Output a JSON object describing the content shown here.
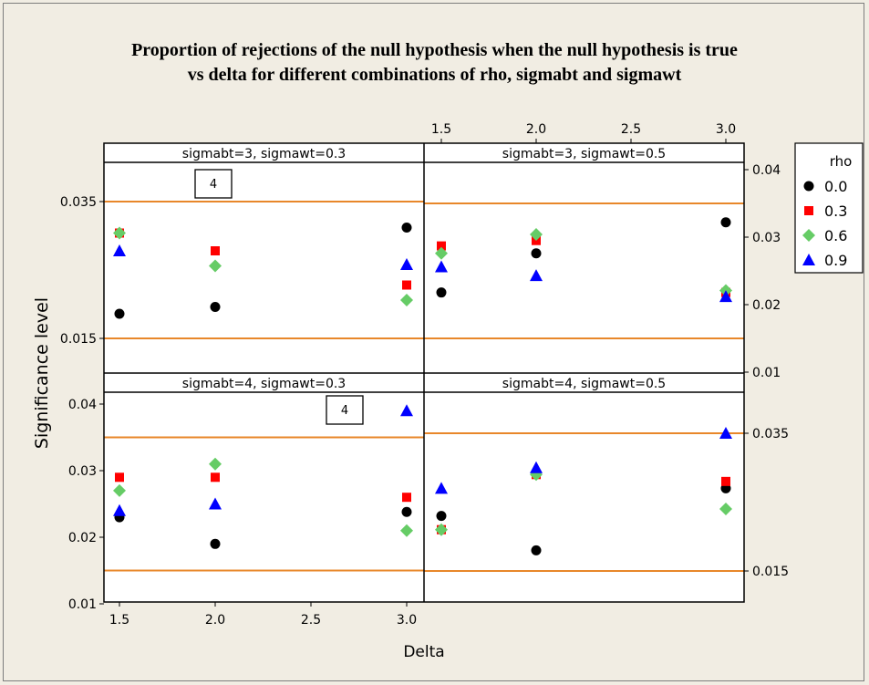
{
  "title": {
    "line1": "Proportion of rejections of the null hypothesis when the null hypothesis is true",
    "line2": "vs delta for different combinations of rho, sigmabt and sigmawt"
  },
  "chart_data": {
    "type": "scatter",
    "xlabel": "Delta",
    "ylabel": "Significance level",
    "x": [
      1.5,
      2.0,
      3.0
    ],
    "x_ticks": [
      "1.5",
      "2.0",
      "2.5",
      "3.0"
    ],
    "x_tick_values": [
      1.5,
      2.0,
      2.5,
      3.0
    ],
    "legend": {
      "title": "rho",
      "placement": "right",
      "entries": [
        {
          "label": "0.0",
          "color": "#000000",
          "shape": "circle"
        },
        {
          "label": "0.3",
          "color": "#ff0000",
          "shape": "square"
        },
        {
          "label": "0.6",
          "color": "#66cc66",
          "shape": "diamond"
        },
        {
          "label": "0.9",
          "color": "#0000ff",
          "shape": "triangle"
        }
      ]
    },
    "reference_lines": [
      0.015,
      0.035
    ],
    "reference_line_color": "#e8872a",
    "panels": [
      {
        "label": "sigmabt=3, sigmawt=0.3",
        "ylim": [
          0.01,
          0.041
        ],
        "yticks": [
          "0.015",
          "0.035"
        ],
        "ytick_values": [
          0.015,
          0.035
        ],
        "annotation": "4",
        "series": [
          {
            "name": "0.0",
            "values": [
              0.0186,
              0.0196,
              0.0312
            ]
          },
          {
            "name": "0.3",
            "values": [
              0.0304,
              0.0278,
              0.0228
            ]
          },
          {
            "name": "0.6",
            "values": [
              0.0304,
              0.0256,
              0.0206
            ]
          },
          {
            "name": "0.9",
            "values": [
              0.0278,
              null,
              0.0258
            ]
          }
        ]
      },
      {
        "label": "sigmabt=3, sigmawt=0.5",
        "ylim": [
          0.01,
          0.041
        ],
        "yticks": [
          "0.04",
          "0.03",
          "0.02",
          "0.01"
        ],
        "ytick_values": [
          0.04,
          0.03,
          0.02,
          0.01
        ],
        "series": [
          {
            "name": "0.0",
            "values": [
              0.0218,
              0.0276,
              0.0322
            ]
          },
          {
            "name": "0.3",
            "values": [
              0.0287,
              0.0295,
              0.0218
            ]
          },
          {
            "name": "0.6",
            "values": [
              0.0276,
              0.0304,
              0.0221
            ]
          },
          {
            "name": "0.9",
            "values": [
              0.0256,
              0.0243,
              0.0212
            ]
          }
        ]
      },
      {
        "label": "sigmabt=4, sigmawt=0.3",
        "ylim": [
          0.01,
          0.041
        ],
        "yticks": [
          "0.04",
          "0.03",
          "0.02",
          "0.01"
        ],
        "ytick_values": [
          0.04,
          0.03,
          0.02,
          0.01
        ],
        "annotation": "4",
        "series": [
          {
            "name": "0.0",
            "values": [
              0.023,
              0.019,
              0.0238
            ]
          },
          {
            "name": "0.3",
            "values": [
              0.029,
              0.029,
              0.026
            ]
          },
          {
            "name": "0.6",
            "values": [
              0.027,
              0.031,
              0.021
            ]
          },
          {
            "name": "0.9",
            "values": [
              0.024,
              0.025,
              0.039
            ]
          }
        ]
      },
      {
        "label": "sigmabt=4, sigmawt=0.5",
        "ylim": [
          0.01,
          0.041
        ],
        "yticks": [
          "0.035",
          "0.015"
        ],
        "ytick_values": [
          0.035,
          0.015
        ],
        "series": [
          {
            "name": "0.0",
            "values": [
              0.023,
              0.018,
              0.027
            ]
          },
          {
            "name": "0.3",
            "values": [
              0.021,
              0.029,
              0.028
            ]
          },
          {
            "name": "0.6",
            "values": [
              0.021,
              0.029,
              0.024
            ]
          },
          {
            "name": "0.9",
            "values": [
              0.027,
              0.03,
              0.035
            ]
          }
        ]
      }
    ]
  }
}
